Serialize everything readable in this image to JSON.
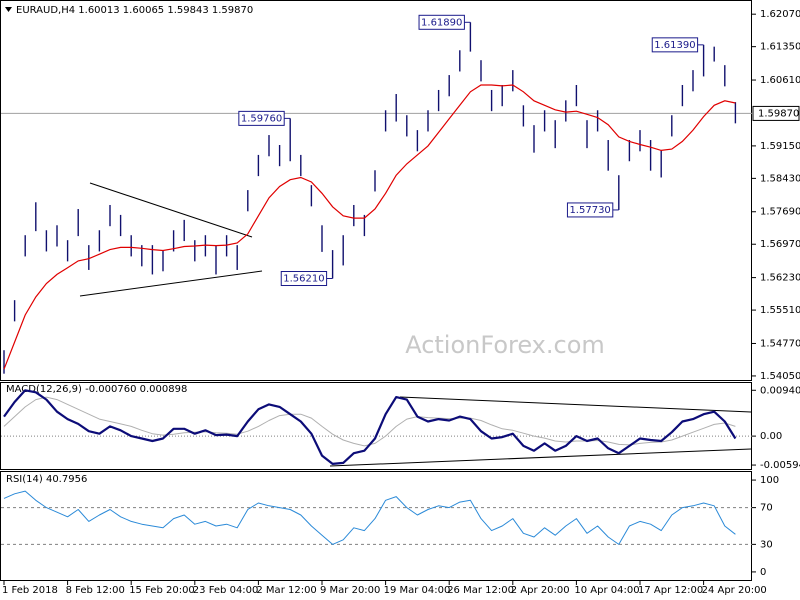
{
  "chart_data": [
    {
      "type": "ohlc",
      "title": "EURAUD,H4  1.60013 1.60065 1.59843 1.59870",
      "watermark": "ActionForex.com",
      "color": "#10106e",
      "xlim": [
        0,
        69
      ],
      "ylim": [
        1.5396,
        1.6234
      ],
      "yticks": [
        {
          "value": 1.6207,
          "label": "1.62070"
        },
        {
          "value": 1.6135,
          "label": "1.61350"
        },
        {
          "value": 1.6061,
          "label": "1.60610"
        },
        {
          "value": 1.5915,
          "label": "1.59150"
        },
        {
          "value": 1.5843,
          "label": "1.58430"
        },
        {
          "value": 1.5769,
          "label": "1.57690"
        },
        {
          "value": 1.5697,
          "label": "1.56970"
        },
        {
          "value": 1.5623,
          "label": "1.56230"
        },
        {
          "value": 1.5551,
          "label": "1.55510"
        },
        {
          "value": 1.5477,
          "label": "1.54770"
        },
        {
          "value": 1.5405,
          "label": "1.54050"
        }
      ],
      "last_price": {
        "value": 1.5987,
        "label": "1.59870"
      },
      "high": [
        1.5462,
        1.5573,
        1.5717,
        1.579,
        1.5728,
        1.5739,
        1.5706,
        1.5775,
        1.5695,
        1.5728,
        1.5784,
        1.5762,
        1.5717,
        1.5695,
        1.5695,
        1.5684,
        1.5728,
        1.5751,
        1.5706,
        1.5717,
        1.5695,
        1.5717,
        1.5695,
        1.5817,
        1.5895,
        1.5939,
        1.5917,
        1.5976,
        1.5895,
        1.5828,
        1.5739,
        1.5684,
        1.5717,
        1.5784,
        1.5762,
        1.5861,
        1.5994,
        1.603,
        1.5983,
        1.595,
        1.5994,
        1.6039,
        1.6072,
        1.6127,
        1.6189,
        1.6105,
        1.6039,
        1.605,
        1.6083,
        1.6005,
        1.5961,
        1.5994,
        1.5972,
        1.6016,
        1.605,
        1.5972,
        1.5994,
        1.5928,
        1.585,
        1.5928,
        1.595,
        1.5928,
        1.5906,
        1.5983,
        1.605,
        1.6083,
        1.6139,
        1.6135,
        1.6094,
        1.6012
      ],
      "low": [
        1.541,
        1.5526,
        1.567,
        1.5726,
        1.5681,
        1.5692,
        1.5659,
        1.5715,
        1.564,
        1.5681,
        1.5737,
        1.5715,
        1.567,
        1.5648,
        1.563,
        1.5637,
        1.5681,
        1.5704,
        1.5659,
        1.567,
        1.563,
        1.567,
        1.564,
        1.577,
        1.5848,
        1.5892,
        1.587,
        1.5881,
        1.5848,
        1.5781,
        1.568,
        1.5621,
        1.565,
        1.5737,
        1.5715,
        1.5814,
        1.5947,
        1.5969,
        1.5936,
        1.5903,
        1.5947,
        1.5992,
        1.6025,
        1.608,
        1.6124,
        1.6058,
        1.5992,
        1.6003,
        1.6036,
        1.5958,
        1.59,
        1.5947,
        1.591,
        1.5969,
        1.6003,
        1.591,
        1.5947,
        1.586,
        1.5773,
        1.5881,
        1.5903,
        1.586,
        1.5845,
        1.5936,
        1.6003,
        1.6036,
        1.6069,
        1.6102,
        1.6047,
        1.5965
      ],
      "ma": {
        "color": "#e00000",
        "values": [
          1.542,
          1.548,
          1.554,
          1.558,
          1.561,
          1.563,
          1.5645,
          1.566,
          1.5665,
          1.5675,
          1.5685,
          1.569,
          1.569,
          1.5688,
          1.5685,
          1.5683,
          1.5687,
          1.5692,
          1.5693,
          1.5695,
          1.5694,
          1.5695,
          1.57,
          1.572,
          1.576,
          1.58,
          1.5825,
          1.584,
          1.5845,
          1.5835,
          1.581,
          1.578,
          1.576,
          1.5755,
          1.5755,
          1.5775,
          1.581,
          1.585,
          1.5875,
          1.5895,
          1.5915,
          1.5945,
          1.5975,
          1.6005,
          1.6035,
          1.605,
          1.605,
          1.6048,
          1.605,
          1.6035,
          1.6015,
          1.6005,
          1.5995,
          1.599,
          1.5992,
          1.5985,
          1.5978,
          1.5962,
          1.5935,
          1.5925,
          1.5918,
          1.5912,
          1.5905,
          1.5908,
          1.5925,
          1.595,
          1.598,
          1.6005,
          1.6015,
          1.601
        ]
      },
      "annotations": [
        {
          "x": 44,
          "value": 1.6189,
          "label": "1.61890"
        },
        {
          "x": 27,
          "value": 1.5976,
          "label": "1.59760"
        },
        {
          "x": 31,
          "value": 1.5621,
          "label": "1.56210"
        },
        {
          "x": 58,
          "value": 1.5773,
          "label": "1.57730"
        },
        {
          "x": 66,
          "value": 1.6139,
          "label": "1.61390"
        }
      ]
    },
    {
      "type": "line",
      "title": "MACD(12,26,9) -0.000760 0.000898",
      "xlim": [
        0,
        69
      ],
      "ylim": [
        -0.00675,
        0.0109
      ],
      "yticks": [
        0.009407,
        {
          "value": 0,
          "label": "0.00"
        },
        -0.00594
      ],
      "grid": "dotted",
      "series": [
        {
          "color": "#b0b0b0",
          "width": 1,
          "values": [
            0.002,
            0.004,
            0.006,
            0.0075,
            0.008,
            0.0075,
            0.0065,
            0.0055,
            0.0045,
            0.0035,
            0.003,
            0.0025,
            0.002,
            0.0012,
            0.0005,
            0.0002,
            0.0004,
            0.0007,
            0.0008,
            0.0009,
            0.0007,
            0.0006,
            0.0004,
            0.001,
            0.002,
            0.0032,
            0.0042,
            0.0045,
            0.0045,
            0.0037,
            0.002,
            0.0004,
            -0.0008,
            -0.0015,
            -0.002,
            -0.0015,
            0,
            0.002,
            0.0035,
            0.004,
            0.0038,
            0.0037,
            0.0036,
            0.0037,
            0.0037,
            0.0032,
            0.0023,
            0.0015,
            0.0012,
            0.0006,
            0,
            -0.0004,
            -0.001,
            -0.0012,
            -0.001,
            -0.001,
            -0.0009,
            -0.0012,
            -0.0017,
            -0.0018,
            -0.0015,
            -0.0013,
            -0.0012,
            -0.0008,
            0,
            0.0008,
            0.0016,
            0.0024,
            0.0027,
            0.002
          ]
        },
        {
          "color": "#0c0c78",
          "width": 2.2,
          "values": [
            0.004,
            0.007,
            0.0094,
            0.009,
            0.0075,
            0.005,
            0.0035,
            0.0025,
            0.001,
            0.0005,
            0.002,
            0.0012,
            0,
            -0.0005,
            -0.001,
            -0.0005,
            0.0015,
            0.0015,
            0.0005,
            0.0012,
            0.0002,
            0.0003,
            0,
            0.003,
            0.0055,
            0.0065,
            0.006,
            0.0045,
            0.003,
            0.0005,
            -0.004,
            -0.0057,
            -0.0055,
            -0.0035,
            -0.003,
            -0.0005,
            0.0045,
            0.008,
            0.0075,
            0.004,
            0.003,
            0.0035,
            0.0032,
            0.004,
            0.0035,
            0.001,
            -0.0005,
            -0.0002,
            0.0005,
            -0.002,
            -0.003,
            -0.0015,
            -0.003,
            -0.002,
            0,
            -0.001,
            -0.0005,
            -0.0025,
            -0.0035,
            -0.002,
            -0.0005,
            -0.0008,
            -0.001,
            0.0008,
            0.003,
            0.0035,
            0.0045,
            0.005,
            0.003,
            -0.0005
          ]
        }
      ]
    },
    {
      "type": "line",
      "title": "RSI(14) 40.7956",
      "xlim": [
        0,
        69
      ],
      "ylim": [
        -8.8,
        107.7
      ],
      "yticks": [
        100,
        70,
        30,
        0
      ],
      "grid": "dashed",
      "series": [
        {
          "color": "#2b8ad8",
          "width": 1,
          "values": [
            80,
            85,
            88,
            78,
            70,
            65,
            60,
            68,
            55,
            62,
            68,
            60,
            55,
            52,
            50,
            48,
            58,
            62,
            52,
            55,
            50,
            52,
            48,
            68,
            75,
            72,
            70,
            68,
            62,
            50,
            40,
            30,
            35,
            48,
            45,
            58,
            78,
            82,
            70,
            62,
            68,
            72,
            70,
            76,
            78,
            58,
            45,
            50,
            58,
            42,
            38,
            48,
            40,
            50,
            58,
            42,
            50,
            38,
            30,
            50,
            55,
            52,
            45,
            62,
            70,
            72,
            75,
            72,
            50,
            41
          ]
        }
      ],
      "xticks": [
        {
          "value": 0,
          "label": "1 Feb 2018"
        },
        {
          "value": 6,
          "label": "8 Feb 12:00"
        },
        {
          "value": 12,
          "label": "15 Feb 20:00"
        },
        {
          "value": 18,
          "label": "23 Feb 04:00"
        },
        {
          "value": 24,
          "label": "2 Mar 12:00"
        },
        {
          "value": 30,
          "label": "9 Mar 20:00"
        },
        {
          "value": 36,
          "label": "19 Mar 04:00"
        },
        {
          "value": 42,
          "label": "26 Mar 12:00"
        },
        {
          "value": 48,
          "label": "2 Apr 20:00"
        },
        {
          "value": 54,
          "label": "10 Apr 04:00"
        },
        {
          "value": 60,
          "label": "17 Apr 12:00"
        },
        {
          "value": 66,
          "label": "24 Apr 20:00"
        }
      ]
    }
  ]
}
